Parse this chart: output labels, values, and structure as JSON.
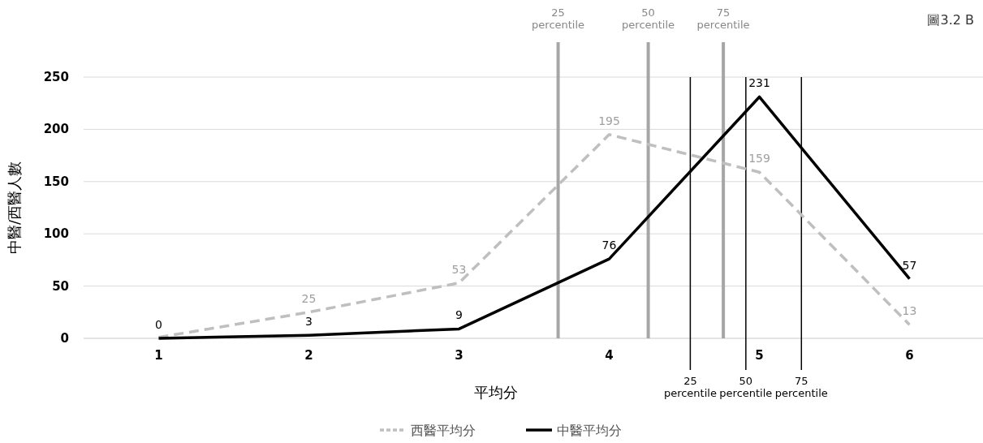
{
  "chart_data": {
    "type": "line",
    "xlabel": "平均分",
    "ylabel": "中醫/西醫人數",
    "x": [
      1,
      2,
      3,
      4,
      5,
      6
    ],
    "xlim": [
      0.5,
      6.5
    ],
    "xticks": [
      1,
      2,
      3,
      4,
      5,
      6
    ],
    "ylim": [
      0,
      250
    ],
    "yticks": [
      0,
      50,
      100,
      150,
      200,
      250
    ],
    "grid": "y",
    "legend": "bottom",
    "marker": "none",
    "series": [
      {
        "name": "西醫平均分",
        "color": "#bfbfbf",
        "line_style": "dashed",
        "values": [
          1,
          25,
          53,
          195,
          159,
          13
        ],
        "value_labels": [
          null,
          "25",
          "53",
          "195",
          "159",
          "13"
        ]
      },
      {
        "name": "中醫平均分",
        "color": "#000000",
        "line_style": "solid",
        "values": [
          0,
          3,
          9,
          76,
          231,
          57
        ],
        "value_labels": [
          "0",
          "3",
          "9",
          "76",
          "231",
          "57"
        ]
      }
    ],
    "ref_lines": [
      {
        "axis": "x",
        "value": 3.66,
        "label": "25 percentile",
        "color": "#a6a6a6"
      },
      {
        "axis": "x",
        "value": 4.26,
        "label": "50 percentile",
        "color": "#a6a6a6"
      },
      {
        "axis": "x",
        "value": 4.76,
        "label": "75 percentile",
        "color": "#a6a6a6"
      },
      {
        "axis": "x",
        "value": 4.54,
        "label": "25 percentile",
        "color": "#000000"
      },
      {
        "axis": "x",
        "value": 4.91,
        "label": "50 percentile",
        "color": "#000000"
      },
      {
        "axis": "x",
        "value": 5.28,
        "label": "75 percentile",
        "color": "#000000"
      }
    ],
    "annotations": [
      "圖3.2 B"
    ]
  }
}
